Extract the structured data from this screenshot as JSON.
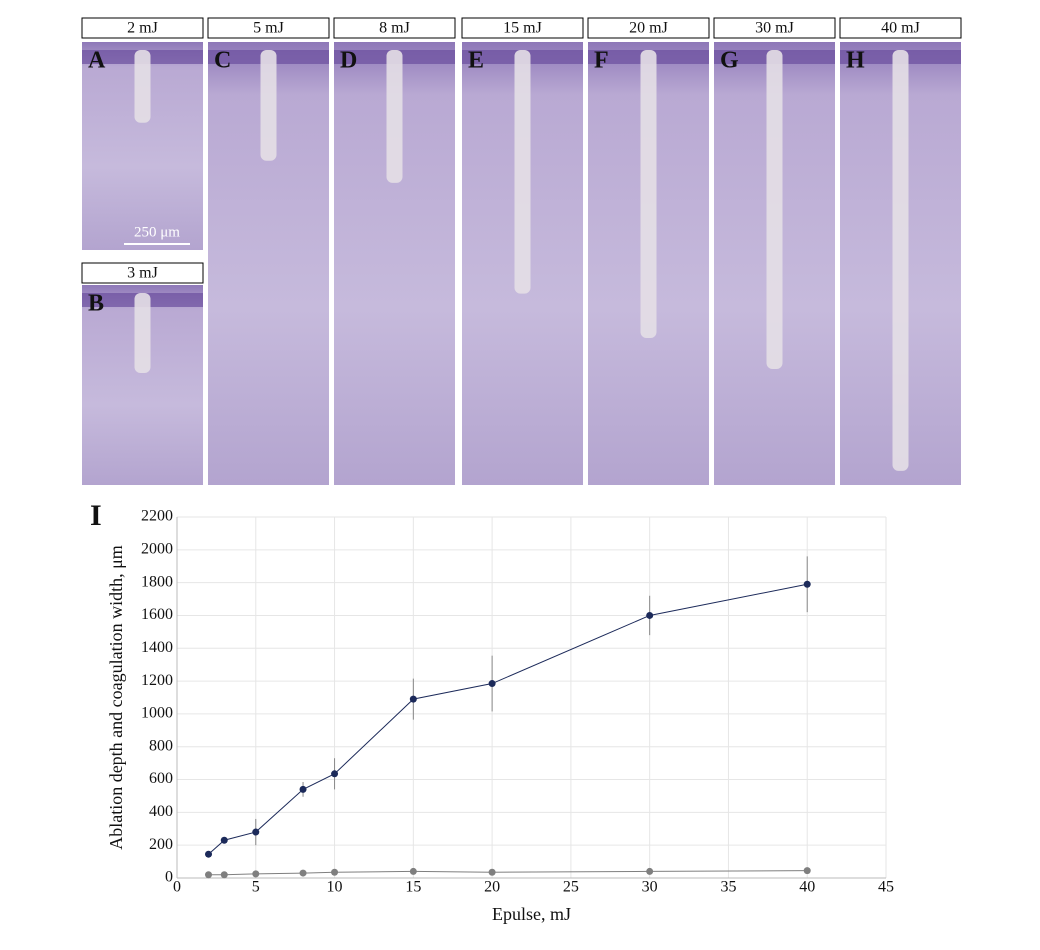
{
  "panels": [
    {
      "energy": "2 mJ",
      "letter": "A"
    },
    {
      "energy": "3 mJ",
      "letter": "B"
    },
    {
      "energy": "5 mJ",
      "letter": "C"
    },
    {
      "energy": "8 mJ",
      "letter": "D"
    },
    {
      "energy": "15 mJ",
      "letter": "E"
    },
    {
      "energy": "20 mJ",
      "letter": "F"
    },
    {
      "energy": "30 mJ",
      "letter": "G"
    },
    {
      "energy": "40 mJ",
      "letter": "H"
    }
  ],
  "scale_bar": "250 μm",
  "chart_data": {
    "type": "line",
    "panel_label": "I",
    "xlabel": "Epulse, mJ",
    "ylabel": "Ablation depth and coagulation width, μm",
    "x": [
      2,
      3,
      5,
      8,
      10,
      15,
      20,
      30,
      40
    ],
    "series": [
      {
        "color": "#1c2a5a",
        "values": [
          145,
          230,
          280,
          540,
          635,
          1090,
          1185,
          1600,
          1790
        ],
        "errors": [
          15,
          20,
          80,
          45,
          95,
          125,
          170,
          120,
          170
        ]
      },
      {
        "color": "#7f7f7f",
        "values": [
          20,
          20,
          25,
          30,
          35,
          40,
          35,
          40,
          45
        ]
      }
    ],
    "xlim": [
      0,
      45
    ],
    "xticks": [
      0,
      5,
      10,
      15,
      20,
      25,
      30,
      35,
      40,
      45
    ],
    "ylim": [
      0,
      2200
    ],
    "yticks": [
      0,
      200,
      400,
      600,
      800,
      1000,
      1200,
      1400,
      1600,
      1800,
      2000,
      2200
    ],
    "grid": true
  }
}
